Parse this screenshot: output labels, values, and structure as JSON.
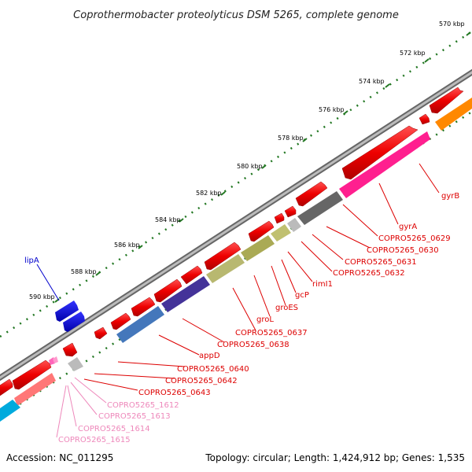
{
  "title": "Coprothermobacter proteolyticus DSM 5265, complete genome",
  "footer": {
    "accession": "Accession: NC_011295",
    "summary": "Topology: circular; Length: 1,424,912 bp; Genes: 1,535"
  },
  "colors": {
    "backbone": "#888888",
    "gene_red": "#ff0000",
    "tick_green": "#227722",
    "label_red": "#dd0000",
    "label_pink": "#ee88bb",
    "label_blue": "#0000cc"
  },
  "scale_ticks": [
    {
      "label": "570 kbp",
      "kbp": 570
    },
    {
      "label": "572 kbp",
      "kbp": 572
    },
    {
      "label": "574 kbp",
      "kbp": 574
    },
    {
      "label": "576 kbp",
      "kbp": 576
    },
    {
      "label": "578 kbp",
      "kbp": 578
    },
    {
      "label": "580 kbp",
      "kbp": 580
    },
    {
      "label": "582 kbp",
      "kbp": 582
    },
    {
      "label": "584 kbp",
      "kbp": 584
    },
    {
      "label": "586 kbp",
      "kbp": 586
    },
    {
      "label": "588 kbp",
      "kbp": 588
    },
    {
      "label": "590 kbp",
      "kbp": 590
    }
  ],
  "gene_labels": [
    {
      "text": "gyrB",
      "color": "red"
    },
    {
      "text": "gyrA",
      "color": "red"
    },
    {
      "text": "COPRO5265_0629",
      "color": "red"
    },
    {
      "text": "COPRO5265_0630",
      "color": "red"
    },
    {
      "text": "COPRO5265_0631",
      "color": "red"
    },
    {
      "text": "COPRO5265_0632",
      "color": "red"
    },
    {
      "text": "rimI1",
      "color": "red"
    },
    {
      "text": "gcP",
      "color": "red"
    },
    {
      "text": "groES",
      "color": "red"
    },
    {
      "text": "groL",
      "color": "red"
    },
    {
      "text": "COPRO5265_0637",
      "color": "red"
    },
    {
      "text": "COPRO5265_0638",
      "color": "red"
    },
    {
      "text": "appD",
      "color": "red"
    },
    {
      "text": "COPRO5265_0640",
      "color": "red"
    },
    {
      "text": "COPRO5265_0642",
      "color": "red"
    },
    {
      "text": "COPRO5265_0643",
      "color": "red"
    },
    {
      "text": "COPRO5265_1612",
      "color": "pink"
    },
    {
      "text": "COPRO5265_1613",
      "color": "pink"
    },
    {
      "text": "COPRO5265_1614",
      "color": "pink"
    },
    {
      "text": "COPRO5265_1615",
      "color": "pink"
    },
    {
      "text": "lipA",
      "color": "blue"
    }
  ]
}
